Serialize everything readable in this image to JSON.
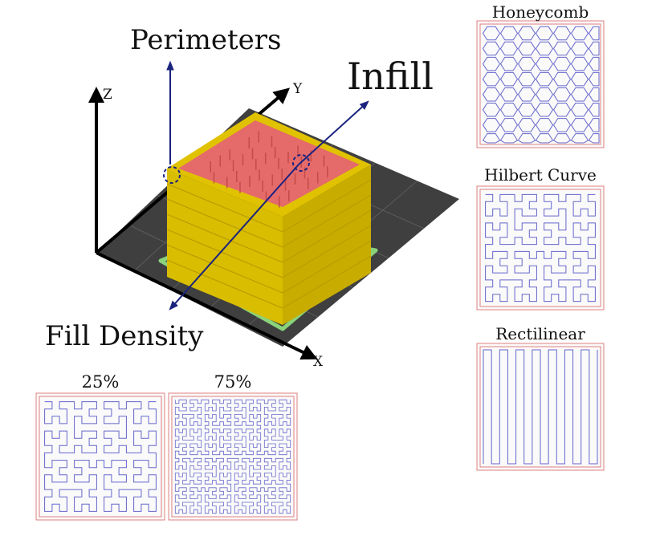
{
  "labels": {
    "perimeters": "Perimeters",
    "infill": "Infill",
    "fill_density": "Fill Density"
  },
  "axes": {
    "x": "X",
    "y": "Y",
    "z": "Z"
  },
  "patterns": [
    {
      "name": "Honeycomb"
    },
    {
      "name": "Hilbert Curve"
    },
    {
      "name": "Rectilinear"
    }
  ],
  "densities": [
    {
      "label": "25%"
    },
    {
      "label": "75%"
    }
  ],
  "colors": {
    "bed": "#3d3d3d",
    "bed_grid": "#5a5a5a",
    "perimeter_yellow": "#e0c400",
    "infill_red": "#e86a6a",
    "skirt_green": "#8ad37a",
    "arrow_blue": "#1a237e",
    "pattern_line": "#6666cc",
    "pattern_border": "#e08080"
  },
  "icons": [
    "x-axis-arrow",
    "y-axis-arrow",
    "z-axis-arrow",
    "callout-arrow"
  ]
}
